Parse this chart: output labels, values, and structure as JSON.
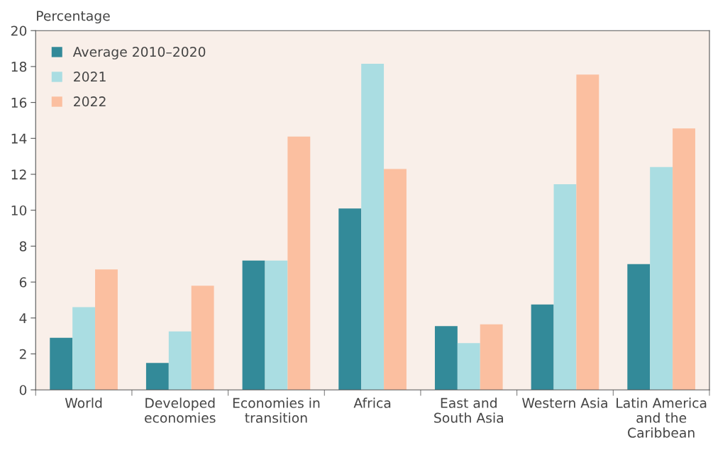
{
  "chart_data": {
    "type": "bar",
    "ylabel": "Percentage",
    "categories": [
      "World",
      "Developed\neconomies",
      "Economies in\ntransition",
      "Africa",
      "East and\nSouth Asia",
      "Western Asia",
      "Latin America\nand the\nCaribbean"
    ],
    "series": [
      {
        "name": "Average 2010–2020",
        "color": "#338a99",
        "values": [
          2.9,
          1.5,
          7.2,
          10.1,
          3.55,
          4.75,
          7.0
        ]
      },
      {
        "name": "2021",
        "color": "#aadde2",
        "values": [
          4.6,
          3.25,
          7.2,
          18.15,
          2.6,
          11.45,
          12.4
        ]
      },
      {
        "name": "2022",
        "color": "#fbbfa0",
        "values": [
          6.7,
          5.8,
          14.1,
          12.3,
          3.65,
          17.55,
          14.55
        ]
      }
    ],
    "ylim": [
      0,
      20
    ],
    "yticks": [
      0,
      2,
      4,
      6,
      8,
      10,
      12,
      14,
      16,
      18,
      20
    ],
    "grid": false,
    "legend": "top left"
  }
}
